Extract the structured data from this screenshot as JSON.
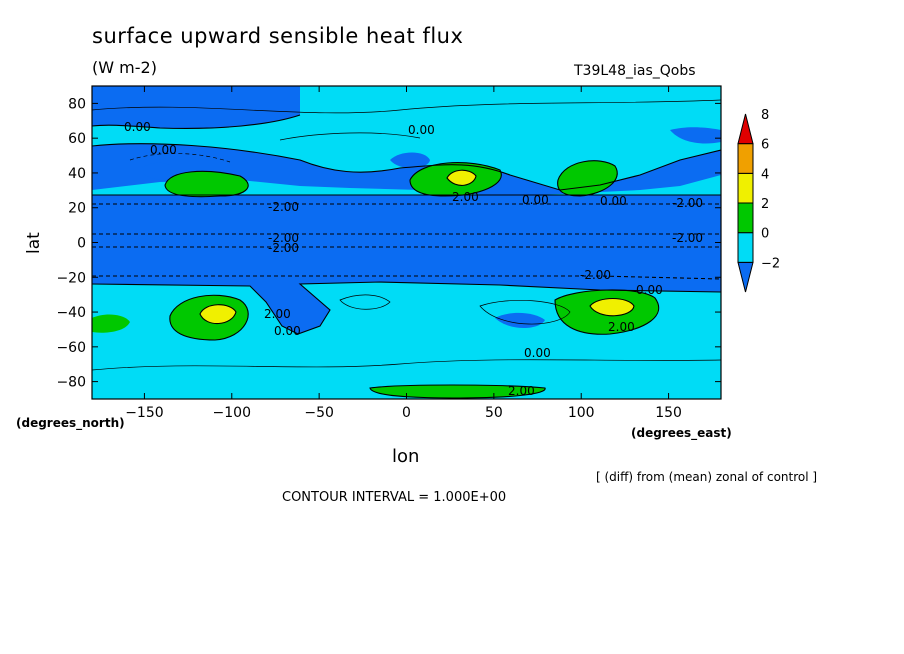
{
  "chart_data": {
    "type": "heatmap",
    "title": "surface upward sensible heat flux",
    "units_label": "(W m-2)",
    "run_label": "T39L48_ias_Qobs",
    "xlabel": "lon",
    "ylabel": "lat",
    "x_units": "(degrees_east)",
    "y_units": "(degrees_north)",
    "xlim": [
      -180,
      180
    ],
    "ylim": [
      -90,
      90
    ],
    "x_ticks": [
      -150,
      -100,
      -50,
      0,
      50,
      100,
      150
    ],
    "y_ticks": [
      80,
      60,
      40,
      20,
      0,
      -20,
      -40,
      -60,
      -80
    ],
    "x_tick_labels": [
      "-150",
      "-100",
      "-50",
      "0",
      "50",
      "100",
      "150"
    ],
    "y_tick_labels": [
      "80",
      "60",
      "40",
      "20",
      "0",
      "-20",
      "-40",
      "-60",
      "-80"
    ],
    "colorbar": {
      "levels": [
        -2,
        0,
        2,
        4,
        6,
        8
      ],
      "labels": [
        "-2",
        "0",
        "2",
        "4",
        "6",
        "8"
      ],
      "colors": [
        "#0b6cf2",
        "#00dcf6",
        "#00c800",
        "#f0f000",
        "#f0a000",
        "#e00000"
      ]
    },
    "contour_labels": [
      "0.00",
      "0.00",
      "0.00",
      "0.00",
      "2.00",
      "0.00",
      "-2.00",
      "-2.00",
      "-2.00",
      "-2.00",
      "-2.00",
      "-2.00",
      "0.00",
      "2.00",
      "0.00",
      "2.00",
      "0.00",
      "2.00"
    ],
    "note": "[ (diff) from (mean) zonal of control ]",
    "contour_interval": "CONTOUR INTERVAL = 1.000E+00",
    "grid": false
  }
}
